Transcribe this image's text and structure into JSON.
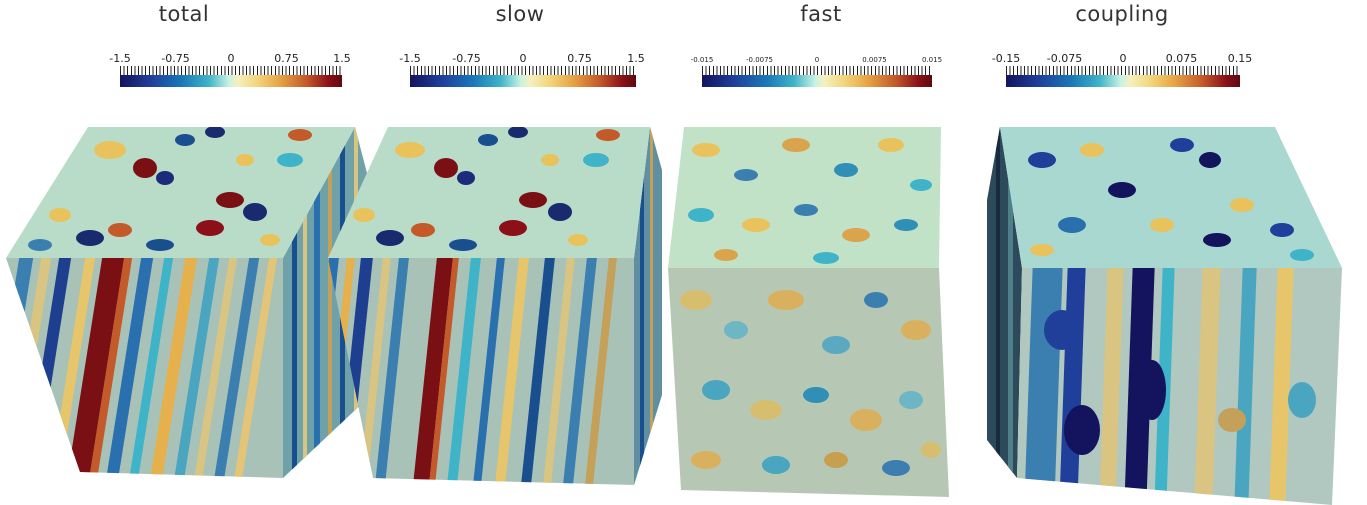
{
  "panels": [
    {
      "title": "total",
      "ticks": [
        "-1.5",
        "-0.75",
        "0",
        "0.75",
        "1.5"
      ]
    },
    {
      "title": "slow",
      "ticks": [
        "-1.5",
        "-0.75",
        "0",
        "0.75",
        "1.5"
      ]
    },
    {
      "title": "fast",
      "ticks": [
        "-0.015",
        "-0.0075",
        "0",
        "0.0075",
        "0.015"
      ]
    },
    {
      "title": "coupling",
      "ticks": [
        "-0.15",
        "-0.075",
        "0",
        "0.075",
        "0.15"
      ]
    }
  ],
  "colormap": [
    "#14145e",
    "#1f3f9a",
    "#1a78b8",
    "#3fb4c8",
    "#c6f2e2",
    "#f4f1c0",
    "#f2d57a",
    "#e6a444",
    "#c4592a",
    "#8b1018",
    "#5e0a10"
  ]
}
